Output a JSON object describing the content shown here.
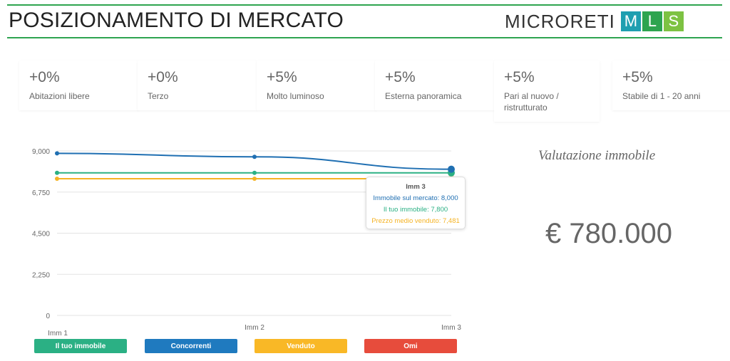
{
  "header": {
    "title": "POSIZIONAMENTO DI MERCATO"
  },
  "brand": {
    "name": "MICRORETI",
    "letters": [
      "M",
      "L",
      "S"
    ],
    "colors": [
      "#1f9fb0",
      "#2ea44f",
      "#7dc242"
    ]
  },
  "cards": [
    {
      "value": "+0%",
      "label": "Abitazioni libere"
    },
    {
      "value": "+0%",
      "label": "Terzo"
    },
    {
      "value": "+5%",
      "label": "Molto luminoso"
    },
    {
      "value": "+5%",
      "label": "Esterna panoramica"
    },
    {
      "value": "+5%",
      "label": "Pari al nuovo / ristrutturato"
    },
    {
      "value": "+5%",
      "label": "Stabile di 1 - 20 anni"
    }
  ],
  "chart_data": {
    "type": "line",
    "x": [
      "Imm 1",
      "Imm 2",
      "Imm 3"
    ],
    "ylim": [
      0,
      9000
    ],
    "yticks": [
      0,
      2250,
      4500,
      6750,
      9000
    ],
    "ytick_labels": [
      "0",
      "2,250",
      "4,500",
      "6,750",
      "9,000"
    ],
    "grid": true,
    "series": [
      {
        "name": "Immobile sul mercato",
        "color": "#1f6fb2",
        "values": [
          8870,
          8680,
          8000
        ]
      },
      {
        "name": "Il tuo immobile",
        "color": "#2bb084",
        "values": [
          7800,
          7800,
          7800
        ]
      },
      {
        "name": "Prezzo medio venduto",
        "color": "#f5b324",
        "values": [
          7481,
          7481,
          7481
        ]
      }
    ]
  },
  "tooltip": {
    "title": "Imm 3",
    "rows": [
      {
        "text": "Immobile sul mercato: 8,000",
        "color": "#1f6fb2"
      },
      {
        "text": "Il tuo immobile: 7,800",
        "color": "#2bb084"
      },
      {
        "text": "Prezzo medio venduto: 7,481",
        "color": "#f5b324"
      }
    ]
  },
  "legend": [
    {
      "label": "Il tuo immobile",
      "color": "#2bb084"
    },
    {
      "label": "Concorrenti",
      "color": "#1f7abf"
    },
    {
      "label": "Venduto",
      "color": "#f9b826"
    },
    {
      "label": "Omi",
      "color": "#e74c3c"
    }
  ],
  "valuation": {
    "label": "Valutazione immobile",
    "value": "€ 780.000"
  }
}
